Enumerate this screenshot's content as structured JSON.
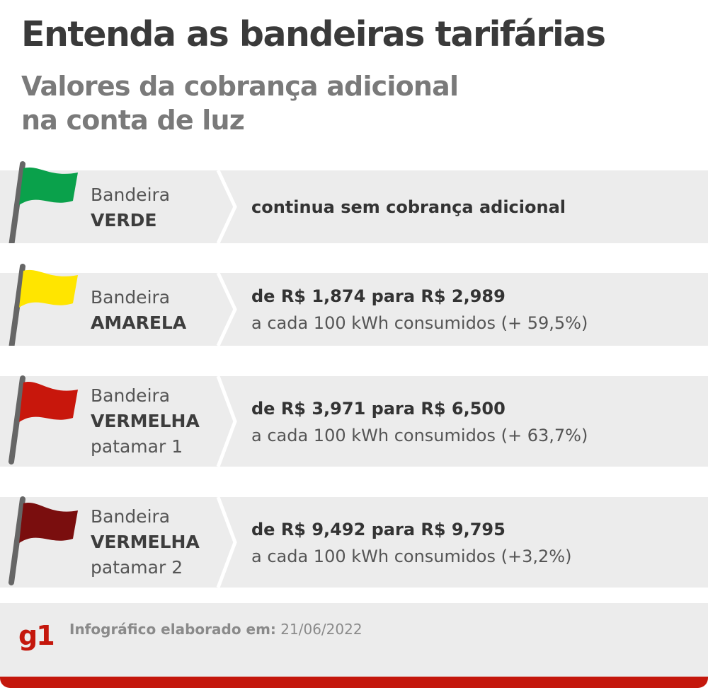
{
  "header": {
    "title": "Entenda as bandeiras tarifárias",
    "subtitle_line1": "Valores da cobrança adicional",
    "subtitle_line2": "na conta de luz"
  },
  "flags": [
    {
      "prefix": "Bandeira",
      "name": "VERDE",
      "level": "",
      "color": "#0aa14b",
      "main_text": "continua sem cobrança adicional",
      "detail_text": ""
    },
    {
      "prefix": "Bandeira",
      "name": "AMARELA",
      "level": "",
      "color": "#ffe500",
      "main_text": "de R$ 1,874 para R$ 2,989",
      "detail_text": "a cada 100 kWh consumidos (+ 59,5%)"
    },
    {
      "prefix": "Bandeira",
      "name": "VERMELHA",
      "level": "patamar 1",
      "color": "#c8170c",
      "main_text": "de R$ 3,971 para R$ 6,500",
      "detail_text": "a cada 100 kWh consumidos (+ 63,7%)"
    },
    {
      "prefix": "Bandeira",
      "name": "VERMELHA",
      "level": "patamar 2",
      "color": "#7a0e0e",
      "main_text": "de R$ 9,492 para R$ 9,795",
      "detail_text": "a cada 100 kWh consumidos (+3,2%)"
    }
  ],
  "footer": {
    "logo": "g1",
    "credit_label": "Infográfico elaborado em:",
    "credit_date": "21/06/2022",
    "accent_color": "#c4170c"
  },
  "colors": {
    "row_background": "#ececec",
    "pole": "#666666"
  }
}
